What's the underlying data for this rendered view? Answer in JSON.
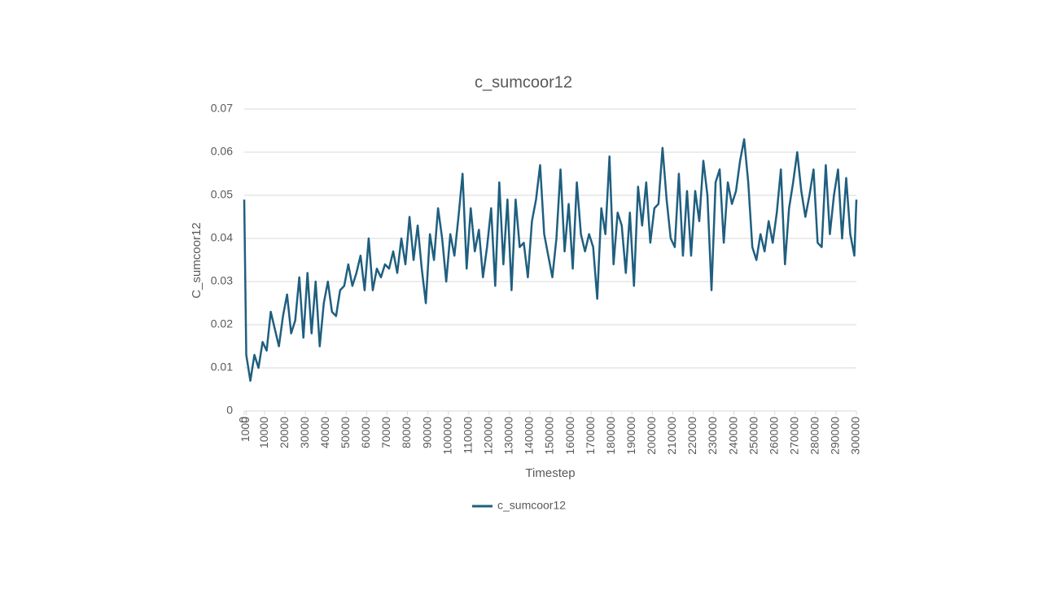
{
  "chart_data": {
    "type": "line",
    "title": "c_sumcoor12",
    "x_label": "Timestep",
    "y_label": "C_sumcoor12",
    "x": [
      0,
      1000,
      3000,
      5000,
      7000,
      9000,
      11000,
      13000,
      15000,
      17000,
      19000,
      21000,
      23000,
      25000,
      27000,
      29000,
      31000,
      33000,
      35000,
      37000,
      39000,
      41000,
      43000,
      45000,
      47000,
      49000,
      51000,
      53000,
      55000,
      57000,
      59000,
      61000,
      63000,
      65000,
      67000,
      69000,
      71000,
      73000,
      75000,
      77000,
      79000,
      81000,
      83000,
      85000,
      87000,
      89000,
      91000,
      93000,
      95000,
      97000,
      99000,
      101000,
      103000,
      105000,
      107000,
      109000,
      111000,
      113000,
      115000,
      117000,
      119000,
      121000,
      123000,
      125000,
      127000,
      129000,
      131000,
      133000,
      135000,
      137000,
      139000,
      141000,
      143000,
      145000,
      147000,
      149000,
      151000,
      153000,
      155000,
      157000,
      159000,
      161000,
      163000,
      165000,
      167000,
      169000,
      171000,
      173000,
      175000,
      177000,
      179000,
      181000,
      183000,
      185000,
      187000,
      189000,
      191000,
      193000,
      195000,
      197000,
      199000,
      201000,
      203000,
      205000,
      207000,
      209000,
      211000,
      213000,
      215000,
      217000,
      219000,
      221000,
      223000,
      225000,
      227000,
      229000,
      231000,
      233000,
      235000,
      237000,
      239000,
      241000,
      243000,
      245000,
      247000,
      249000,
      251000,
      253000,
      255000,
      257000,
      259000,
      261000,
      263000,
      265000,
      267000,
      269000,
      271000,
      273000,
      275000,
      277000,
      279000,
      281000,
      283000,
      285000,
      287000,
      289000,
      291000,
      293000,
      295000,
      297000,
      299000,
      300000
    ],
    "series": [
      {
        "name": "c_sumcoor12",
        "color": "#1f5f80",
        "values": [
          0.049,
          0.013,
          0.007,
          0.013,
          0.01,
          0.016,
          0.014,
          0.023,
          0.019,
          0.015,
          0.022,
          0.027,
          0.018,
          0.021,
          0.031,
          0.017,
          0.032,
          0.018,
          0.03,
          0.015,
          0.025,
          0.03,
          0.023,
          0.022,
          0.028,
          0.029,
          0.034,
          0.029,
          0.032,
          0.036,
          0.028,
          0.04,
          0.028,
          0.033,
          0.031,
          0.034,
          0.033,
          0.037,
          0.032,
          0.04,
          0.034,
          0.045,
          0.035,
          0.043,
          0.033,
          0.025,
          0.041,
          0.035,
          0.047,
          0.04,
          0.03,
          0.041,
          0.036,
          0.045,
          0.055,
          0.033,
          0.047,
          0.037,
          0.042,
          0.031,
          0.038,
          0.047,
          0.029,
          0.053,
          0.034,
          0.049,
          0.028,
          0.049,
          0.038,
          0.039,
          0.031,
          0.044,
          0.049,
          0.057,
          0.041,
          0.036,
          0.031,
          0.04,
          0.056,
          0.037,
          0.048,
          0.033,
          0.053,
          0.041,
          0.037,
          0.041,
          0.038,
          0.026,
          0.047,
          0.041,
          0.059,
          0.034,
          0.046,
          0.043,
          0.032,
          0.046,
          0.029,
          0.052,
          0.043,
          0.053,
          0.039,
          0.047,
          0.048,
          0.061,
          0.049,
          0.04,
          0.038,
          0.055,
          0.036,
          0.051,
          0.036,
          0.051,
          0.044,
          0.058,
          0.05,
          0.028,
          0.053,
          0.056,
          0.039,
          0.053,
          0.048,
          0.051,
          0.058,
          0.063,
          0.053,
          0.038,
          0.035,
          0.041,
          0.037,
          0.044,
          0.039,
          0.046,
          0.056,
          0.034,
          0.047,
          0.053,
          0.06,
          0.051,
          0.045,
          0.05,
          0.056,
          0.039,
          0.038,
          0.057,
          0.041,
          0.05,
          0.056,
          0.04,
          0.054,
          0.041,
          0.036,
          0.049
        ]
      }
    ],
    "xlim": [
      0,
      300000
    ],
    "xticks": [
      0,
      1000,
      10000,
      20000,
      30000,
      40000,
      50000,
      60000,
      70000,
      80000,
      90000,
      100000,
      110000,
      120000,
      130000,
      140000,
      150000,
      160000,
      170000,
      180000,
      190000,
      200000,
      210000,
      220000,
      230000,
      240000,
      250000,
      260000,
      270000,
      280000,
      290000,
      300000
    ],
    "ylim": [
      0,
      0.07
    ],
    "yticks": [
      0,
      0.01,
      0.02,
      0.03,
      0.04,
      0.05,
      0.06,
      0.07
    ],
    "grid": true,
    "legend": "bottom"
  }
}
